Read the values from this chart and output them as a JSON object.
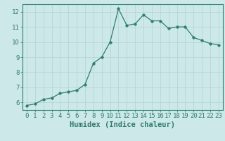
{
  "x": [
    0,
    1,
    2,
    3,
    4,
    5,
    6,
    7,
    8,
    9,
    10,
    11,
    12,
    13,
    14,
    15,
    16,
    17,
    18,
    19,
    20,
    21,
    22,
    23
  ],
  "y": [
    5.8,
    5.9,
    6.2,
    6.3,
    6.6,
    6.7,
    6.8,
    7.2,
    8.6,
    9.0,
    10.0,
    12.2,
    11.1,
    11.2,
    11.8,
    11.4,
    11.4,
    10.9,
    11.0,
    11.0,
    10.3,
    10.1,
    9.9,
    9.8
  ],
  "line_color": "#2e7d6e",
  "marker": "o",
  "markersize": 2.5,
  "bg_color": "#cce8e8",
  "grid_color": "#b8d5d5",
  "xlabel": "Humidex (Indice chaleur)",
  "xlim": [
    -0.5,
    23.5
  ],
  "ylim": [
    5.5,
    12.5
  ],
  "yticks": [
    6,
    7,
    8,
    9,
    10,
    11,
    12
  ],
  "xticks": [
    0,
    1,
    2,
    3,
    4,
    5,
    6,
    7,
    8,
    9,
    10,
    11,
    12,
    13,
    14,
    15,
    16,
    17,
    18,
    19,
    20,
    21,
    22,
    23
  ],
  "tick_color": "#2e7d6e",
  "label_color": "#2e7d6e",
  "spine_color": "#2e7d6e",
  "font_size": 6.5,
  "xlabel_fontsize": 7.5
}
